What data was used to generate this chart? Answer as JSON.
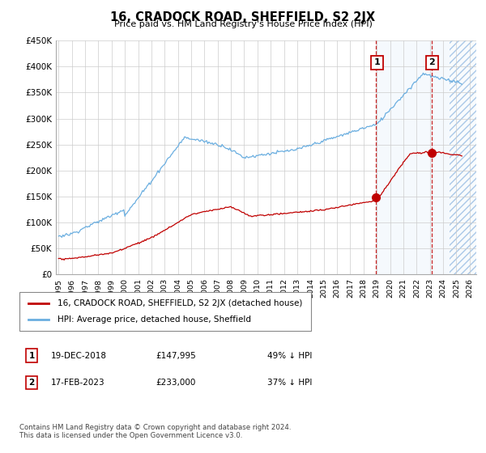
{
  "title": "16, CRADOCK ROAD, SHEFFIELD, S2 2JX",
  "subtitle": "Price paid vs. HM Land Registry's House Price Index (HPI)",
  "legend_line1": "16, CRADOCK ROAD, SHEFFIELD, S2 2JX (detached house)",
  "legend_line2": "HPI: Average price, detached house, Sheffield",
  "transaction1_date": "19-DEC-2018",
  "transaction1_price": "£147,995",
  "transaction1_pct": "49% ↓ HPI",
  "transaction1_year": 2018.95,
  "transaction1_value": 147995,
  "transaction2_date": "17-FEB-2023",
  "transaction2_price": "£233,000",
  "transaction2_pct": "37% ↓ HPI",
  "transaction2_year": 2023.12,
  "transaction2_value": 233000,
  "footer": "Contains HM Land Registry data © Crown copyright and database right 2024.\nThis data is licensed under the Open Government Licence v3.0.",
  "hpi_color": "#6aaee0",
  "price_color": "#c00000",
  "box_edge_color": "#c00000",
  "shade_color": "#ccdff5",
  "ylim": [
    0,
    450000
  ],
  "xlim_start": 1994.8,
  "xlim_end": 2026.5,
  "hatch_start": 2024.5
}
